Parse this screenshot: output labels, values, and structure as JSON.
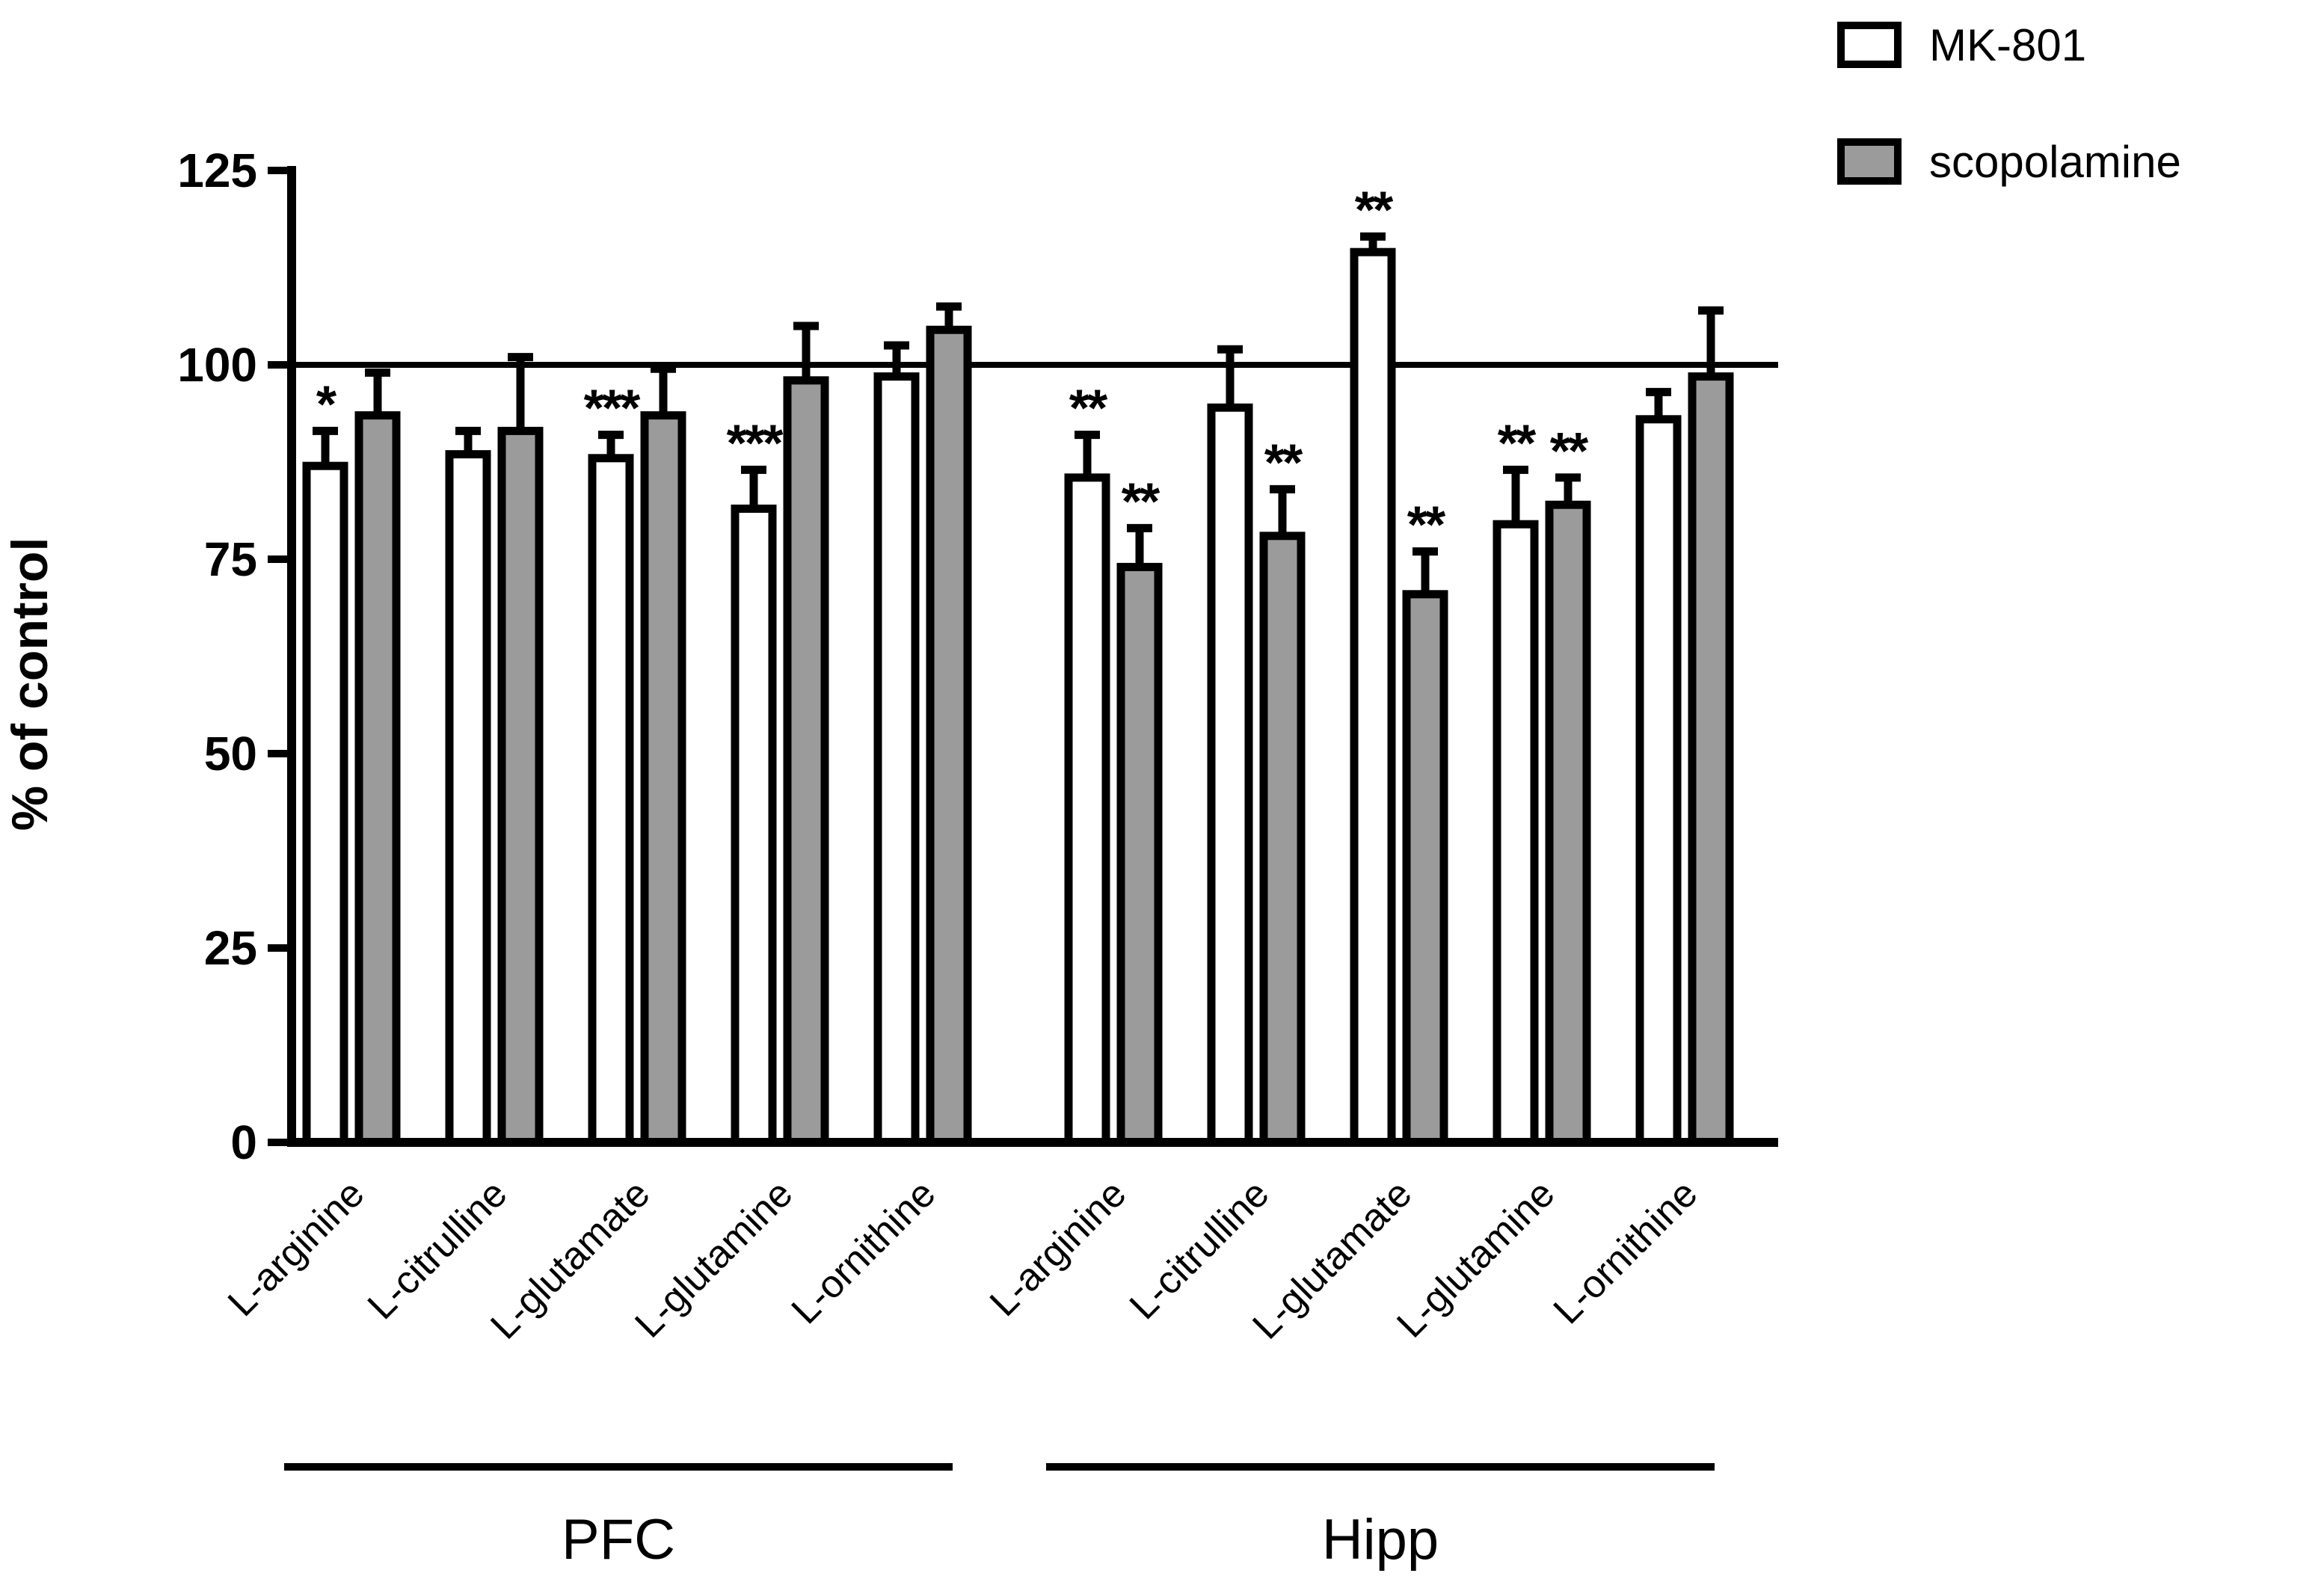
{
  "figure": {
    "kind": "grouped bar chart with SEM error bars",
    "background": "#ffffff",
    "ink_color": "#000000"
  },
  "chart_data": {
    "type": "bar",
    "title": "",
    "xlabel": "",
    "ylabel": "% of control",
    "ylim": [
      0,
      125
    ],
    "yticks": [
      0,
      25,
      50,
      75,
      100,
      125
    ],
    "reference_line": 100,
    "grid": false,
    "legend_position": "top-right",
    "legend": [
      {
        "label": "MK-801",
        "fill": "#ffffff"
      },
      {
        "label": "scopolamine",
        "fill": "#9b9b9b"
      }
    ],
    "regions": [
      "PFC",
      "Hipp"
    ],
    "categories": [
      "L-arginine",
      "L-citrulline",
      "L-glutamate",
      "L-glutamine",
      "L-ornithine"
    ],
    "series": [
      {
        "name": "MK-801",
        "fill": "#ffffff",
        "values": {
          "PFC": [
            87,
            88.5,
            88,
            81.5,
            98.5
          ],
          "Hipp": [
            85.5,
            94.5,
            114.5,
            79.5,
            93
          ]
        },
        "sem": {
          "PFC": [
            4.5,
            3,
            3,
            5,
            4
          ],
          "Hipp": [
            5.5,
            7.5,
            2,
            7,
            3.5
          ]
        },
        "significance": {
          "PFC": [
            "*",
            "",
            "***",
            "***",
            ""
          ],
          "Hipp": [
            "**",
            "",
            "**",
            "**",
            ""
          ]
        }
      },
      {
        "name": "scopolamine",
        "fill": "#9b9b9b",
        "values": {
          "PFC": [
            93.5,
            91.5,
            93.5,
            98,
            104.5
          ],
          "Hipp": [
            74,
            78,
            70.5,
            82,
            98.5
          ]
        },
        "sem": {
          "PFC": [
            5.5,
            9.5,
            6,
            7,
            3
          ],
          "Hipp": [
            5,
            6,
            5.5,
            3.5,
            8.5
          ]
        },
        "significance": {
          "PFC": [
            "",
            "",
            "",
            "",
            ""
          ],
          "Hipp": [
            "**",
            "**",
            "**",
            "**",
            ""
          ]
        }
      }
    ]
  }
}
